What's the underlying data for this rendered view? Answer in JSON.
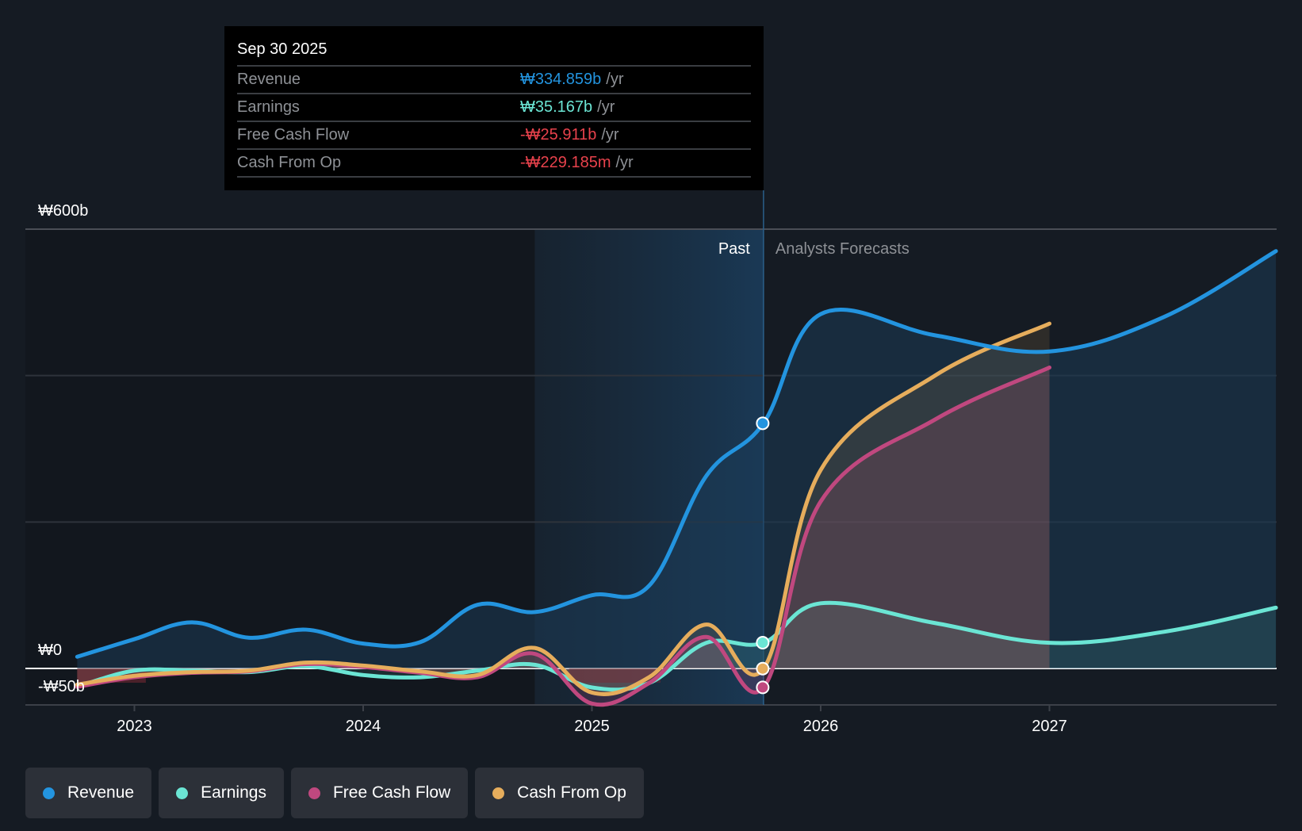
{
  "tooltip": {
    "date": "Sep 30 2025",
    "rows": [
      {
        "label": "Revenue",
        "value": "₩334.859b",
        "unit": "/yr",
        "color": "#2394df"
      },
      {
        "label": "Earnings",
        "value": "₩35.167b",
        "unit": "/yr",
        "color": "#6be5d4"
      },
      {
        "label": "Free Cash Flow",
        "value": "-₩25.911b",
        "unit": "/yr",
        "color": "#e8424c"
      },
      {
        "label": "Cash From Op",
        "value": "-₩229.185m",
        "unit": "/yr",
        "color": "#e8424c"
      }
    ]
  },
  "legend": [
    {
      "label": "Revenue",
      "color": "#2394df"
    },
    {
      "label": "Earnings",
      "color": "#6be5d4"
    },
    {
      "label": "Free Cash Flow",
      "color": "#c0487f"
    },
    {
      "label": "Cash From Op",
      "color": "#e6ad5c"
    }
  ],
  "chart_data": {
    "type": "line",
    "title": "",
    "xlabel": "",
    "ylabel": "",
    "currency": "₩",
    "ylim": [
      -50,
      600
    ],
    "yticks": [
      {
        "value": 600,
        "label": "₩600b"
      },
      {
        "value": 0,
        "label": "₩0"
      },
      {
        "value": -50,
        "label": "-₩50b"
      }
    ],
    "gridlines": [
      600,
      400,
      200
    ],
    "xlim": [
      2022.68,
      2027.99
    ],
    "xticks": [
      {
        "value": 2023,
        "label": "2023"
      },
      {
        "value": 2024,
        "label": "2024"
      },
      {
        "value": 2025,
        "label": "2025"
      },
      {
        "value": 2026,
        "label": "2026"
      },
      {
        "value": 2027,
        "label": "2027"
      }
    ],
    "past_label": "Past",
    "forecast_label": "Analysts Forecasts",
    "past_region": [
      2024.75,
      2025.75
    ],
    "divider_x": 2025.75,
    "units": "b (billions KRW)",
    "series": [
      {
        "name": "Revenue",
        "color": "#2394df",
        "points": [
          [
            2022.75,
            16
          ],
          [
            2023.0,
            40
          ],
          [
            2023.25,
            63
          ],
          [
            2023.5,
            42
          ],
          [
            2023.75,
            53
          ],
          [
            2024.0,
            34
          ],
          [
            2024.25,
            36
          ],
          [
            2024.5,
            87
          ],
          [
            2024.75,
            77
          ],
          [
            2025.0,
            100
          ],
          [
            2025.25,
            113
          ],
          [
            2025.5,
            263
          ],
          [
            2025.75,
            335
          ],
          [
            2026.0,
            484
          ],
          [
            2026.5,
            455
          ],
          [
            2027.0,
            433
          ],
          [
            2027.5,
            480
          ],
          [
            2027.99,
            570
          ]
        ]
      },
      {
        "name": "Earnings",
        "color": "#6be5d4",
        "points": [
          [
            2022.75,
            -25
          ],
          [
            2023.0,
            -3
          ],
          [
            2023.25,
            -3
          ],
          [
            2023.5,
            -5
          ],
          [
            2023.75,
            3
          ],
          [
            2024.0,
            -9
          ],
          [
            2024.25,
            -12
          ],
          [
            2024.5,
            -3
          ],
          [
            2024.75,
            5
          ],
          [
            2025.0,
            -26
          ],
          [
            2025.25,
            -20
          ],
          [
            2025.5,
            35
          ],
          [
            2025.75,
            35
          ],
          [
            2026.0,
            89
          ],
          [
            2026.5,
            62
          ],
          [
            2027.0,
            35
          ],
          [
            2027.5,
            50
          ],
          [
            2027.99,
            83
          ]
        ]
      },
      {
        "name": "Free Cash Flow",
        "color": "#c0487f",
        "points": [
          [
            2022.75,
            -25
          ],
          [
            2023.0,
            -12
          ],
          [
            2023.25,
            -6
          ],
          [
            2023.5,
            -4
          ],
          [
            2023.75,
            6
          ],
          [
            2024.0,
            2
          ],
          [
            2024.25,
            -6
          ],
          [
            2024.5,
            -12
          ],
          [
            2024.75,
            20
          ],
          [
            2025.0,
            -48
          ],
          [
            2025.25,
            -20
          ],
          [
            2025.5,
            43
          ],
          [
            2025.75,
            -26
          ],
          [
            2026.0,
            228
          ],
          [
            2026.5,
            340
          ],
          [
            2027.0,
            411
          ]
        ]
      },
      {
        "name": "Cash From Op",
        "color": "#e6ad5c",
        "points": [
          [
            2022.75,
            -22
          ],
          [
            2023.0,
            -10
          ],
          [
            2023.25,
            -5
          ],
          [
            2023.5,
            -3
          ],
          [
            2023.75,
            8
          ],
          [
            2024.0,
            4
          ],
          [
            2024.25,
            -4
          ],
          [
            2024.5,
            -9
          ],
          [
            2024.75,
            28
          ],
          [
            2025.0,
            -33
          ],
          [
            2025.25,
            -12
          ],
          [
            2025.5,
            60
          ],
          [
            2025.75,
            -0.2
          ],
          [
            2026.0,
            271
          ],
          [
            2026.5,
            400
          ],
          [
            2027.0,
            471
          ]
        ]
      }
    ],
    "highlight": {
      "x": 2025.75,
      "values": {
        "Revenue": 334.859,
        "Earnings": 35.167,
        "Free Cash Flow": -25.911,
        "Cash From Op": -0.229
      }
    }
  }
}
